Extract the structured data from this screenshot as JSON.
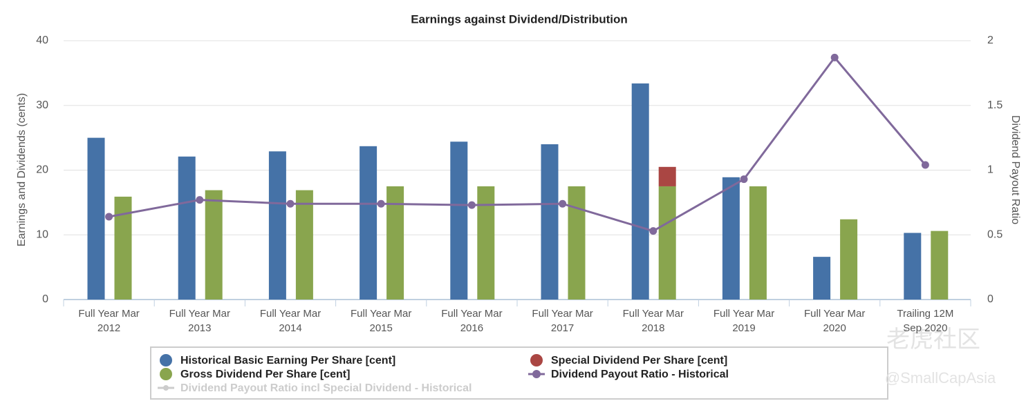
{
  "chart_data": {
    "type": "bar",
    "title": "Earnings against Dividend/Distribution",
    "y_label": "Earnings and Dividends (cents)",
    "y2_label": "Dividend Payout Ratio",
    "categories": [
      "Full Year Mar 2012",
      "Full Year Mar 2013",
      "Full Year Mar 2014",
      "Full Year Mar 2015",
      "Full Year Mar 2016",
      "Full Year Mar 2017",
      "Full Year Mar 2018",
      "Full Year Mar 2019",
      "Full Year Mar 2020",
      "Trailing 12M Sep 2020"
    ],
    "series": [
      {
        "name": "Historical Basic Earning Per Share [cent]",
        "color": "#4572a7",
        "values": [
          25,
          22.1,
          22.9,
          23.7,
          24.4,
          24,
          33.4,
          18.9,
          6.6,
          10.3
        ]
      },
      {
        "name": "Gross Dividend Per Share [cent]",
        "color": "#89a54e",
        "stack": "dividend",
        "values": [
          15.9,
          16.9,
          16.9,
          17.5,
          17.5,
          17.5,
          17.5,
          17.5,
          12.4,
          10.6
        ]
      },
      {
        "name": "Special Dividend Per Share [cent]",
        "color": "#aa4643",
        "stack": "dividend",
        "values": [
          null,
          null,
          null,
          null,
          null,
          null,
          3,
          null,
          null,
          null
        ]
      },
      {
        "name": "Dividend Payout Ratio - Historical",
        "color": "#80699b",
        "type": "line",
        "axis": "y2",
        "values": [
          0.64,
          0.77,
          0.74,
          0.74,
          0.73,
          0.74,
          0.53,
          0.93,
          1.87,
          1.04
        ]
      },
      {
        "name": "Dividend Payout Ratio incl Special Dividend - Historical",
        "color": "#cccccc",
        "type": "line",
        "axis": "y2",
        "visible": false
      }
    ],
    "ylim": [
      0,
      40
    ],
    "yticks": [
      0,
      10,
      20,
      30,
      40
    ],
    "y2lim": [
      0,
      2
    ],
    "y2ticks": [
      0,
      0.5,
      1,
      1.5,
      2
    ],
    "grid": true,
    "annotations": [
      "老虎社区",
      "@SmallCapAsia"
    ]
  }
}
